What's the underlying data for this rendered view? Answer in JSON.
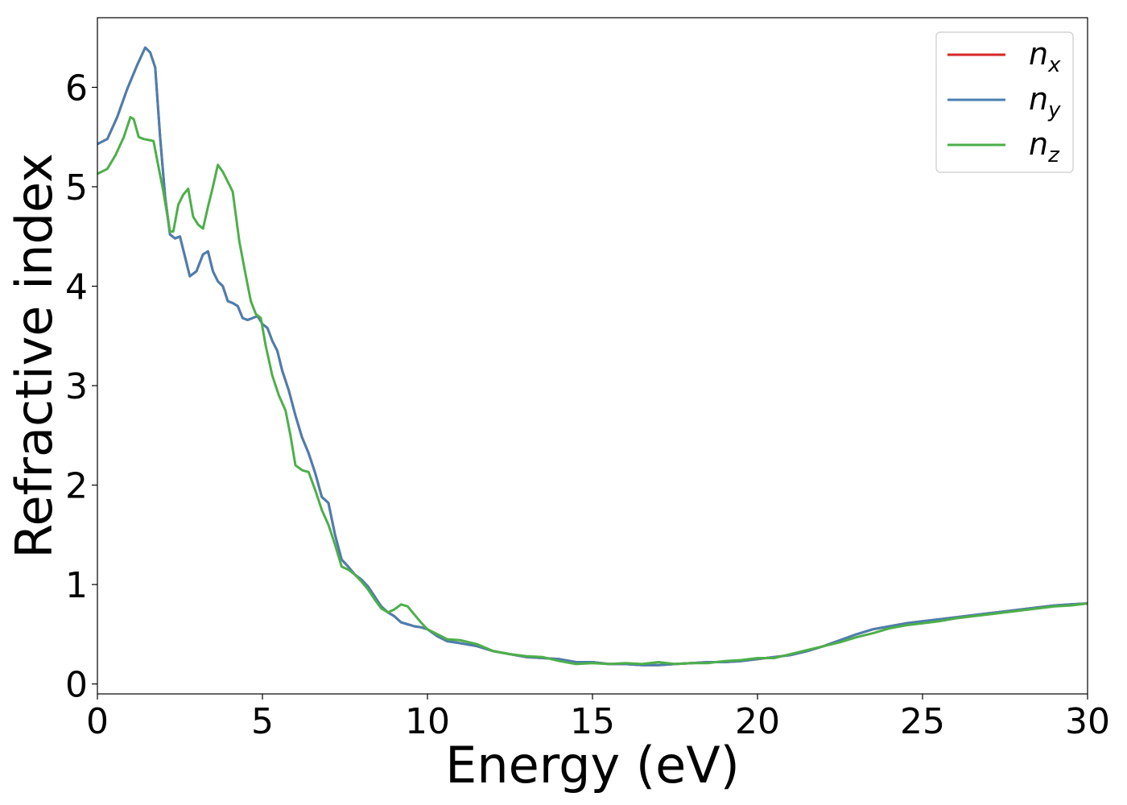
{
  "chart_data": {
    "type": "line",
    "xlabel": "Energy (eV)",
    "ylabel": "Refractive index",
    "xlim": [
      0,
      30
    ],
    "ylim": [
      -0.1,
      6.7
    ],
    "xticks": [
      0,
      5,
      10,
      15,
      20,
      25,
      30
    ],
    "yticks": [
      0,
      1,
      2,
      3,
      4,
      5,
      6
    ],
    "grid": false,
    "legend_position": "top-right",
    "series": [
      {
        "name": "n_x",
        "label_base": "n",
        "label_sub": "x",
        "color": "#d62728",
        "points": [
          [
            0,
            5.43
          ],
          [
            0.3,
            5.48
          ],
          [
            0.6,
            5.7
          ],
          [
            0.9,
            5.98
          ],
          [
            1.2,
            6.22
          ],
          [
            1.45,
            6.4
          ],
          [
            1.6,
            6.35
          ],
          [
            1.75,
            6.2
          ],
          [
            1.9,
            5.5
          ],
          [
            2.05,
            4.9
          ],
          [
            2.2,
            4.52
          ],
          [
            2.35,
            4.48
          ],
          [
            2.5,
            4.5
          ],
          [
            2.65,
            4.3
          ],
          [
            2.8,
            4.1
          ],
          [
            3.0,
            4.15
          ],
          [
            3.2,
            4.32
          ],
          [
            3.35,
            4.35
          ],
          [
            3.5,
            4.15
          ],
          [
            3.65,
            4.05
          ],
          [
            3.8,
            4.0
          ],
          [
            3.95,
            3.85
          ],
          [
            4.1,
            3.83
          ],
          [
            4.25,
            3.8
          ],
          [
            4.4,
            3.68
          ],
          [
            4.55,
            3.66
          ],
          [
            4.7,
            3.68
          ],
          [
            4.85,
            3.7
          ],
          [
            5.0,
            3.62
          ],
          [
            5.15,
            3.58
          ],
          [
            5.3,
            3.45
          ],
          [
            5.45,
            3.35
          ],
          [
            5.6,
            3.15
          ],
          [
            5.8,
            2.95
          ],
          [
            6.0,
            2.7
          ],
          [
            6.2,
            2.48
          ],
          [
            6.4,
            2.32
          ],
          [
            6.6,
            2.12
          ],
          [
            6.8,
            1.88
          ],
          [
            7.0,
            1.82
          ],
          [
            7.2,
            1.5
          ],
          [
            7.4,
            1.25
          ],
          [
            7.6,
            1.18
          ],
          [
            7.8,
            1.1
          ],
          [
            8.0,
            1.05
          ],
          [
            8.2,
            0.98
          ],
          [
            8.4,
            0.88
          ],
          [
            8.6,
            0.78
          ],
          [
            8.8,
            0.72
          ],
          [
            9.0,
            0.68
          ],
          [
            9.2,
            0.62
          ],
          [
            9.4,
            0.6
          ],
          [
            9.6,
            0.58
          ],
          [
            9.8,
            0.57
          ],
          [
            10.0,
            0.55
          ],
          [
            10.3,
            0.48
          ],
          [
            10.6,
            0.43
          ],
          [
            11.0,
            0.41
          ],
          [
            11.5,
            0.38
          ],
          [
            12.0,
            0.33
          ],
          [
            12.5,
            0.3
          ],
          [
            13.0,
            0.27
          ],
          [
            13.5,
            0.26
          ],
          [
            14.0,
            0.25
          ],
          [
            14.5,
            0.22
          ],
          [
            15.0,
            0.22
          ],
          [
            15.5,
            0.2
          ],
          [
            16.0,
            0.2
          ],
          [
            16.5,
            0.19
          ],
          [
            17.0,
            0.19
          ],
          [
            17.5,
            0.2
          ],
          [
            18.0,
            0.21
          ],
          [
            18.5,
            0.22
          ],
          [
            19.0,
            0.22
          ],
          [
            19.5,
            0.23
          ],
          [
            20.0,
            0.25
          ],
          [
            20.5,
            0.27
          ],
          [
            21.0,
            0.29
          ],
          [
            21.5,
            0.33
          ],
          [
            22.0,
            0.38
          ],
          [
            22.5,
            0.44
          ],
          [
            23.0,
            0.5
          ],
          [
            23.5,
            0.55
          ],
          [
            24.0,
            0.58
          ],
          [
            24.5,
            0.61
          ],
          [
            25.0,
            0.63
          ],
          [
            25.5,
            0.65
          ],
          [
            26.0,
            0.67
          ],
          [
            26.5,
            0.69
          ],
          [
            27.0,
            0.71
          ],
          [
            27.5,
            0.73
          ],
          [
            28.0,
            0.75
          ],
          [
            28.5,
            0.77
          ],
          [
            29.0,
            0.79
          ],
          [
            29.5,
            0.8
          ],
          [
            30.0,
            0.81
          ]
        ]
      },
      {
        "name": "n_y",
        "label_base": "n",
        "label_sub": "y",
        "color": "#4a7fb0",
        "points": [
          [
            0,
            5.43
          ],
          [
            0.3,
            5.48
          ],
          [
            0.6,
            5.7
          ],
          [
            0.9,
            5.98
          ],
          [
            1.2,
            6.22
          ],
          [
            1.45,
            6.4
          ],
          [
            1.6,
            6.35
          ],
          [
            1.75,
            6.2
          ],
          [
            1.9,
            5.5
          ],
          [
            2.05,
            4.9
          ],
          [
            2.2,
            4.52
          ],
          [
            2.35,
            4.48
          ],
          [
            2.5,
            4.5
          ],
          [
            2.65,
            4.3
          ],
          [
            2.8,
            4.1
          ],
          [
            3.0,
            4.15
          ],
          [
            3.2,
            4.32
          ],
          [
            3.35,
            4.35
          ],
          [
            3.5,
            4.15
          ],
          [
            3.65,
            4.05
          ],
          [
            3.8,
            4.0
          ],
          [
            3.95,
            3.85
          ],
          [
            4.1,
            3.83
          ],
          [
            4.25,
            3.8
          ],
          [
            4.4,
            3.68
          ],
          [
            4.55,
            3.66
          ],
          [
            4.7,
            3.68
          ],
          [
            4.85,
            3.7
          ],
          [
            5.0,
            3.62
          ],
          [
            5.15,
            3.58
          ],
          [
            5.3,
            3.45
          ],
          [
            5.45,
            3.35
          ],
          [
            5.6,
            3.15
          ],
          [
            5.8,
            2.95
          ],
          [
            6.0,
            2.7
          ],
          [
            6.2,
            2.48
          ],
          [
            6.4,
            2.32
          ],
          [
            6.6,
            2.12
          ],
          [
            6.8,
            1.88
          ],
          [
            7.0,
            1.82
          ],
          [
            7.2,
            1.5
          ],
          [
            7.4,
            1.25
          ],
          [
            7.6,
            1.18
          ],
          [
            7.8,
            1.1
          ],
          [
            8.0,
            1.05
          ],
          [
            8.2,
            0.98
          ],
          [
            8.4,
            0.88
          ],
          [
            8.6,
            0.78
          ],
          [
            8.8,
            0.72
          ],
          [
            9.0,
            0.68
          ],
          [
            9.2,
            0.62
          ],
          [
            9.4,
            0.6
          ],
          [
            9.6,
            0.58
          ],
          [
            9.8,
            0.57
          ],
          [
            10.0,
            0.55
          ],
          [
            10.3,
            0.48
          ],
          [
            10.6,
            0.43
          ],
          [
            11.0,
            0.41
          ],
          [
            11.5,
            0.38
          ],
          [
            12.0,
            0.33
          ],
          [
            12.5,
            0.3
          ],
          [
            13.0,
            0.27
          ],
          [
            13.5,
            0.26
          ],
          [
            14.0,
            0.25
          ],
          [
            14.5,
            0.22
          ],
          [
            15.0,
            0.22
          ],
          [
            15.5,
            0.2
          ],
          [
            16.0,
            0.2
          ],
          [
            16.5,
            0.19
          ],
          [
            17.0,
            0.19
          ],
          [
            17.5,
            0.2
          ],
          [
            18.0,
            0.21
          ],
          [
            18.5,
            0.22
          ],
          [
            19.0,
            0.22
          ],
          [
            19.5,
            0.23
          ],
          [
            20.0,
            0.25
          ],
          [
            20.5,
            0.27
          ],
          [
            21.0,
            0.29
          ],
          [
            21.5,
            0.33
          ],
          [
            22.0,
            0.38
          ],
          [
            22.5,
            0.44
          ],
          [
            23.0,
            0.5
          ],
          [
            23.5,
            0.55
          ],
          [
            24.0,
            0.58
          ],
          [
            24.5,
            0.61
          ],
          [
            25.0,
            0.63
          ],
          [
            25.5,
            0.65
          ],
          [
            26.0,
            0.67
          ],
          [
            26.5,
            0.69
          ],
          [
            27.0,
            0.71
          ],
          [
            27.5,
            0.73
          ],
          [
            28.0,
            0.75
          ],
          [
            28.5,
            0.77
          ],
          [
            29.0,
            0.79
          ],
          [
            29.5,
            0.8
          ],
          [
            30.0,
            0.81
          ]
        ]
      },
      {
        "name": "n_z",
        "label_base": "n",
        "label_sub": "z",
        "color": "#4daf4a",
        "points": [
          [
            0,
            5.13
          ],
          [
            0.3,
            5.18
          ],
          [
            0.55,
            5.32
          ],
          [
            0.8,
            5.5
          ],
          [
            1.0,
            5.7
          ],
          [
            1.1,
            5.68
          ],
          [
            1.25,
            5.5
          ],
          [
            1.4,
            5.48
          ],
          [
            1.55,
            5.47
          ],
          [
            1.7,
            5.46
          ],
          [
            1.85,
            5.2
          ],
          [
            2.0,
            4.95
          ],
          [
            2.2,
            4.55
          ],
          [
            2.3,
            4.55
          ],
          [
            2.45,
            4.82
          ],
          [
            2.6,
            4.92
          ],
          [
            2.75,
            4.98
          ],
          [
            2.9,
            4.7
          ],
          [
            3.05,
            4.62
          ],
          [
            3.2,
            4.58
          ],
          [
            3.35,
            4.8
          ],
          [
            3.5,
            5.0
          ],
          [
            3.65,
            5.22
          ],
          [
            3.8,
            5.15
          ],
          [
            3.95,
            5.05
          ],
          [
            4.1,
            4.95
          ],
          [
            4.3,
            4.45
          ],
          [
            4.5,
            4.1
          ],
          [
            4.65,
            3.85
          ],
          [
            4.8,
            3.72
          ],
          [
            4.95,
            3.68
          ],
          [
            5.1,
            3.4
          ],
          [
            5.3,
            3.1
          ],
          [
            5.5,
            2.9
          ],
          [
            5.7,
            2.75
          ],
          [
            5.85,
            2.5
          ],
          [
            6.0,
            2.2
          ],
          [
            6.2,
            2.15
          ],
          [
            6.4,
            2.13
          ],
          [
            6.6,
            1.95
          ],
          [
            6.8,
            1.75
          ],
          [
            7.0,
            1.6
          ],
          [
            7.2,
            1.4
          ],
          [
            7.4,
            1.18
          ],
          [
            7.6,
            1.15
          ],
          [
            7.8,
            1.1
          ],
          [
            8.0,
            1.03
          ],
          [
            8.2,
            0.95
          ],
          [
            8.4,
            0.85
          ],
          [
            8.6,
            0.76
          ],
          [
            8.8,
            0.72
          ],
          [
            9.0,
            0.75
          ],
          [
            9.2,
            0.8
          ],
          [
            9.4,
            0.78
          ],
          [
            9.6,
            0.7
          ],
          [
            9.8,
            0.62
          ],
          [
            10.0,
            0.55
          ],
          [
            10.3,
            0.5
          ],
          [
            10.6,
            0.45
          ],
          [
            11.0,
            0.44
          ],
          [
            11.5,
            0.4
          ],
          [
            12.0,
            0.33
          ],
          [
            12.5,
            0.3
          ],
          [
            13.0,
            0.28
          ],
          [
            13.5,
            0.27
          ],
          [
            14.0,
            0.23
          ],
          [
            14.5,
            0.2
          ],
          [
            15.0,
            0.21
          ],
          [
            15.5,
            0.2
          ],
          [
            16.0,
            0.21
          ],
          [
            16.5,
            0.2
          ],
          [
            17.0,
            0.22
          ],
          [
            17.5,
            0.2
          ],
          [
            18.0,
            0.21
          ],
          [
            18.5,
            0.21
          ],
          [
            19.0,
            0.23
          ],
          [
            19.5,
            0.24
          ],
          [
            20.0,
            0.26
          ],
          [
            20.5,
            0.26
          ],
          [
            21.0,
            0.3
          ],
          [
            21.5,
            0.34
          ],
          [
            22.0,
            0.38
          ],
          [
            22.5,
            0.42
          ],
          [
            23.0,
            0.47
          ],
          [
            23.5,
            0.51
          ],
          [
            24.0,
            0.56
          ],
          [
            24.5,
            0.59
          ],
          [
            25.0,
            0.61
          ],
          [
            25.5,
            0.63
          ],
          [
            26.0,
            0.66
          ],
          [
            26.5,
            0.68
          ],
          [
            27.0,
            0.7
          ],
          [
            27.5,
            0.72
          ],
          [
            28.0,
            0.74
          ],
          [
            28.5,
            0.76
          ],
          [
            29.0,
            0.78
          ],
          [
            29.5,
            0.79
          ],
          [
            30.0,
            0.81
          ]
        ]
      }
    ]
  }
}
